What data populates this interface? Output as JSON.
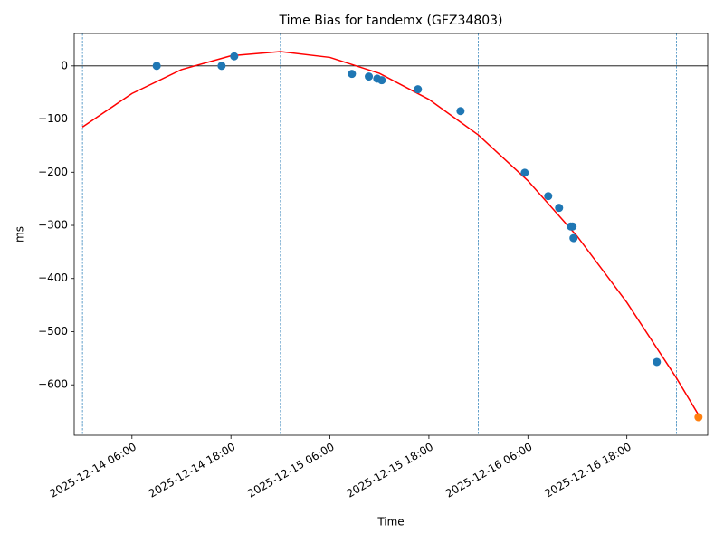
{
  "chart_data": {
    "type": "scatter",
    "title": "Time Bias for tandemx (GFZ34803)",
    "x_label": "Time",
    "y_label": "ms",
    "xlim": [
      "2025-12-13 23:00",
      "2025-12-17 03:48"
    ],
    "ylim": [
      -695,
      61
    ],
    "xticks": [
      "2025-12-14 06:00",
      "2025-12-14 18:00",
      "2025-12-15 06:00",
      "2025-12-15 18:00",
      "2025-12-16 06:00",
      "2025-12-16 18:00"
    ],
    "yticks": [
      0,
      {
        "value": -100,
        "label": "−100"
      },
      {
        "value": -200,
        "label": "−200"
      },
      {
        "value": -300,
        "label": "−300"
      },
      {
        "value": -400,
        "label": "−400"
      },
      {
        "value": -500,
        "label": "−500"
      },
      {
        "value": -600,
        "label": "−600"
      }
    ],
    "hline": 0,
    "vlines": [
      "2025-12-14 00:00",
      "2025-12-15 00:00",
      "2025-12-16 00:00",
      "2025-12-17 00:00"
    ],
    "vline_color": "#1f77b4",
    "series": [
      {
        "kind": "line",
        "color": "#ff0000",
        "x": [
          "2025-12-14 00:00",
          "2025-12-14 06:00",
          "2025-12-14 12:00",
          "2025-12-14 18:00",
          "2025-12-15 00:00",
          "2025-12-15 06:00",
          "2025-12-15 12:00",
          "2025-12-15 18:00",
          "2025-12-16 00:00",
          "2025-12-16 06:00",
          "2025-12-16 12:00",
          "2025-12-16 18:00",
          "2025-12-17 00:00",
          "2025-12-17 02:42"
        ],
        "values": [
          -115,
          -52,
          -7,
          19,
          27,
          16,
          -14,
          -63,
          -130,
          -216,
          -321,
          -445,
          -587,
          -657
        ]
      },
      {
        "kind": "scatter",
        "color": "#1f77b4",
        "x": [
          "2025-12-14 09:00",
          "2025-12-14 16:52",
          "2025-12-14 18:24",
          "2025-12-15 08:40",
          "2025-12-15 10:43",
          "2025-12-15 11:44",
          "2025-12-15 12:17",
          "2025-12-15 16:40",
          "2025-12-15 21:50",
          "2025-12-16 05:37",
          "2025-12-16 08:28",
          "2025-12-16 09:47",
          "2025-12-16 11:12",
          "2025-12-16 11:25",
          "2025-12-16 11:32",
          "2025-12-16 21:38"
        ],
        "values": [
          0,
          0,
          18,
          -15,
          -20,
          -24,
          -27,
          -44,
          -85,
          -201,
          -245,
          -267,
          -302,
          -302,
          -324,
          -557
        ]
      },
      {
        "kind": "scatter",
        "color": "#ff7f0e",
        "x": [
          "2025-12-17 02:41"
        ],
        "values": [
          -661
        ]
      }
    ]
  }
}
